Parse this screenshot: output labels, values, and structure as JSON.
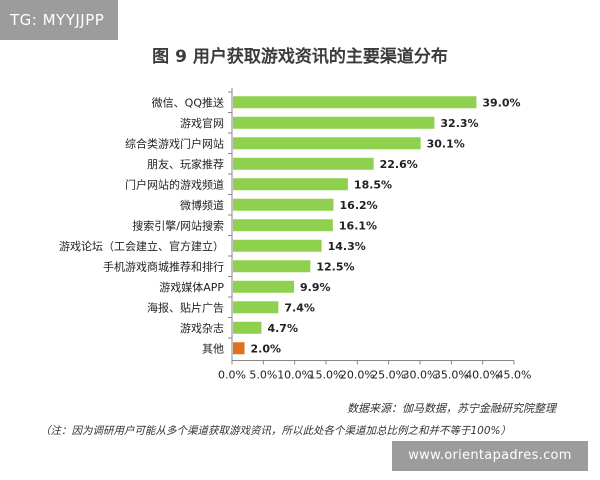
{
  "watermark_top": "TG: MYYJJPP",
  "watermark_bottom": "www.orientapadres.com",
  "source_text": "数据来源：伽马数据，苏宁金融研究院整理",
  "note_text": "（注：因为调研用户可能从多个渠道获取游戏资讯，所以此处各个渠道加总比例之和并不等于100%）",
  "colors": {
    "bar": "#8fd14f",
    "highlight": "#e07020",
    "axis": "#888888"
  },
  "chart_data": {
    "type": "bar",
    "orientation": "horizontal",
    "title": "图 9 用户获取游戏资讯的主要渠道分布",
    "categories": [
      "微信、QQ推送",
      "游戏官网",
      "综合类游戏门户网站",
      "朋友、玩家推荐",
      "门户网站的游戏频道",
      "微博频道",
      "搜索引擎/网站搜索",
      "游戏论坛（工会建立、官方建立）",
      "手机游戏商城推荐和排行",
      "游戏媒体APP",
      "海报、贴片广告",
      "游戏杂志",
      "其他"
    ],
    "values": [
      39.0,
      32.3,
      30.1,
      22.6,
      18.5,
      16.2,
      16.1,
      14.3,
      12.5,
      9.9,
      7.4,
      4.7,
      2.0
    ],
    "value_labels": [
      "39.0%",
      "32.3%",
      "30.1%",
      "22.6%",
      "18.5%",
      "16.2%",
      "16.1%",
      "14.3%",
      "12.5%",
      "9.9%",
      "7.4%",
      "4.7%",
      "2.0%"
    ],
    "highlight_index": 12,
    "xlim": [
      0,
      45
    ],
    "xticks": [
      0,
      5,
      10,
      15,
      20,
      25,
      30,
      35,
      40,
      45
    ],
    "xtick_labels": [
      "0.0%",
      "5.0%",
      "10.0%",
      "15.0%",
      "20.0%",
      "25.0%",
      "30.0%",
      "35.0%",
      "40.0%",
      "45.0%"
    ],
    "xlabel": "",
    "ylabel": "",
    "grid": false,
    "legend": "none"
  }
}
